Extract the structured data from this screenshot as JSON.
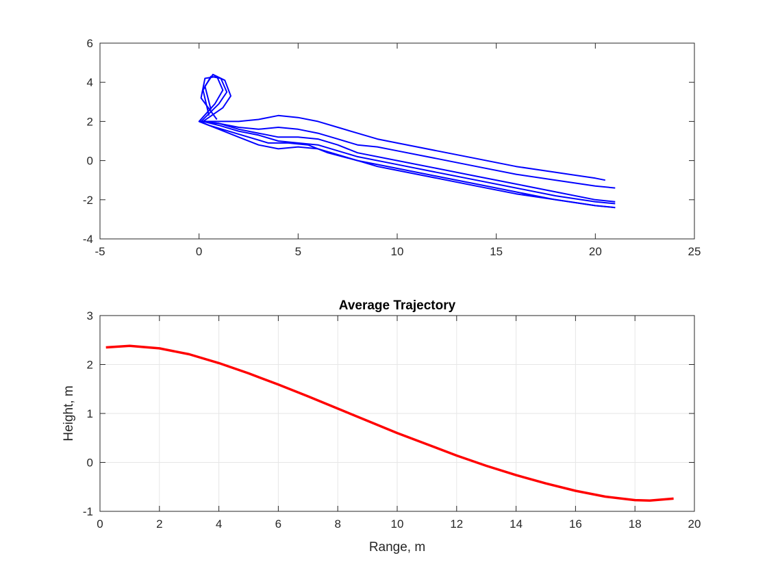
{
  "chart_data": [
    {
      "type": "line",
      "title": "",
      "xlabel": "",
      "ylabel": "",
      "xlim": [
        -5,
        25
      ],
      "ylim": [
        -4,
        6
      ],
      "xticks": [
        -5,
        0,
        5,
        10,
        15,
        20,
        25
      ],
      "yticks": [
        -4,
        -2,
        0,
        2,
        4,
        6
      ],
      "grid": false,
      "color": "#0000ff",
      "series_count_note": "many overlapping blue trajectories",
      "series": [
        {
          "x": [
            0.9,
            0.1,
            0.3,
            0.9,
            1.2,
            0.8,
            0.0,
            0.5,
            1.5,
            2.5,
            3.5,
            4.5,
            5.5,
            6.5,
            8,
            10,
            12,
            14,
            16,
            18,
            20,
            21
          ],
          "y": [
            2.1,
            3.2,
            4.2,
            4.3,
            3.6,
            2.9,
            2.0,
            1.8,
            1.5,
            1.2,
            0.9,
            0.9,
            0.8,
            0.4,
            0.0,
            -0.4,
            -0.8,
            -1.2,
            -1.6,
            -2.0,
            -2.3,
            -2.4
          ]
        },
        {
          "x": [
            0.5,
            0.2,
            0.6,
            1.1,
            1.4,
            1.0,
            0.1,
            1.0,
            2,
            3,
            4,
            5,
            6,
            7,
            8,
            10,
            12,
            14,
            16,
            18,
            20,
            21
          ],
          "y": [
            2.3,
            3.6,
            4.3,
            4.2,
            3.5,
            2.9,
            2.0,
            1.9,
            1.6,
            1.4,
            1.2,
            1.2,
            1.1,
            0.8,
            0.4,
            0.0,
            -0.4,
            -0.8,
            -1.2,
            -1.6,
            -2.0,
            -2.1
          ]
        },
        {
          "x": [
            0.0,
            1.0,
            2,
            3,
            4,
            5,
            6,
            7,
            8,
            9,
            10,
            12,
            14,
            16,
            18,
            20,
            21
          ],
          "y": [
            2.0,
            1.6,
            1.2,
            0.8,
            0.6,
            0.7,
            0.6,
            0.3,
            0.0,
            -0.3,
            -0.5,
            -0.9,
            -1.3,
            -1.7,
            -2.0,
            -2.3,
            -2.4
          ]
        },
        {
          "x": [
            0.0,
            1.0,
            2,
            3,
            4,
            5,
            6,
            7,
            8,
            9,
            10,
            12,
            14,
            16,
            18,
            20,
            21
          ],
          "y": [
            2.0,
            1.9,
            1.7,
            1.6,
            1.7,
            1.6,
            1.4,
            1.1,
            0.8,
            0.7,
            0.5,
            0.1,
            -0.3,
            -0.7,
            -1.0,
            -1.3,
            -1.4
          ]
        },
        {
          "x": [
            0.0,
            1.0,
            2,
            3,
            4,
            5,
            6,
            7,
            8,
            9,
            10,
            12,
            14,
            16,
            18,
            20,
            20.5
          ],
          "y": [
            2.0,
            2.0,
            2.0,
            2.1,
            2.3,
            2.2,
            2.0,
            1.7,
            1.4,
            1.1,
            0.9,
            0.5,
            0.1,
            -0.3,
            -0.6,
            -0.9,
            -1.0
          ]
        },
        {
          "x": [
            0.6,
            0.3,
            0.7,
            1.3,
            1.6,
            1.2,
            0.2,
            1.0,
            2,
            3,
            4,
            5,
            6,
            7,
            8,
            10,
            12,
            14,
            16,
            18,
            20,
            21
          ],
          "y": [
            2.6,
            3.8,
            4.4,
            4.1,
            3.3,
            2.7,
            2.0,
            1.8,
            1.5,
            1.3,
            1.0,
            0.9,
            0.8,
            0.5,
            0.2,
            -0.2,
            -0.6,
            -1.0,
            -1.4,
            -1.8,
            -2.1,
            -2.2
          ]
        }
      ]
    },
    {
      "type": "line",
      "title": "Average Trajectory",
      "xlabel": "Range, m",
      "ylabel": "Height, m",
      "xlim": [
        0,
        20
      ],
      "ylim": [
        -1,
        3
      ],
      "xticks": [
        0,
        2,
        4,
        6,
        8,
        10,
        12,
        14,
        16,
        18,
        20
      ],
      "yticks": [
        -1,
        0,
        1,
        2,
        3
      ],
      "grid": true,
      "color": "#ff0000",
      "series": [
        {
          "x": [
            0.2,
            1.0,
            2.0,
            3.0,
            4.0,
            5.0,
            6.0,
            7.0,
            8.0,
            9.0,
            10.0,
            11.0,
            12.0,
            13.0,
            14.0,
            15.0,
            16.0,
            17.0,
            18.0,
            18.5,
            19.3
          ],
          "y": [
            2.35,
            2.38,
            2.33,
            2.21,
            2.03,
            1.82,
            1.59,
            1.35,
            1.1,
            0.85,
            0.6,
            0.37,
            0.14,
            -0.07,
            -0.26,
            -0.43,
            -0.58,
            -0.7,
            -0.77,
            -0.78,
            -0.74
          ]
        }
      ]
    }
  ]
}
